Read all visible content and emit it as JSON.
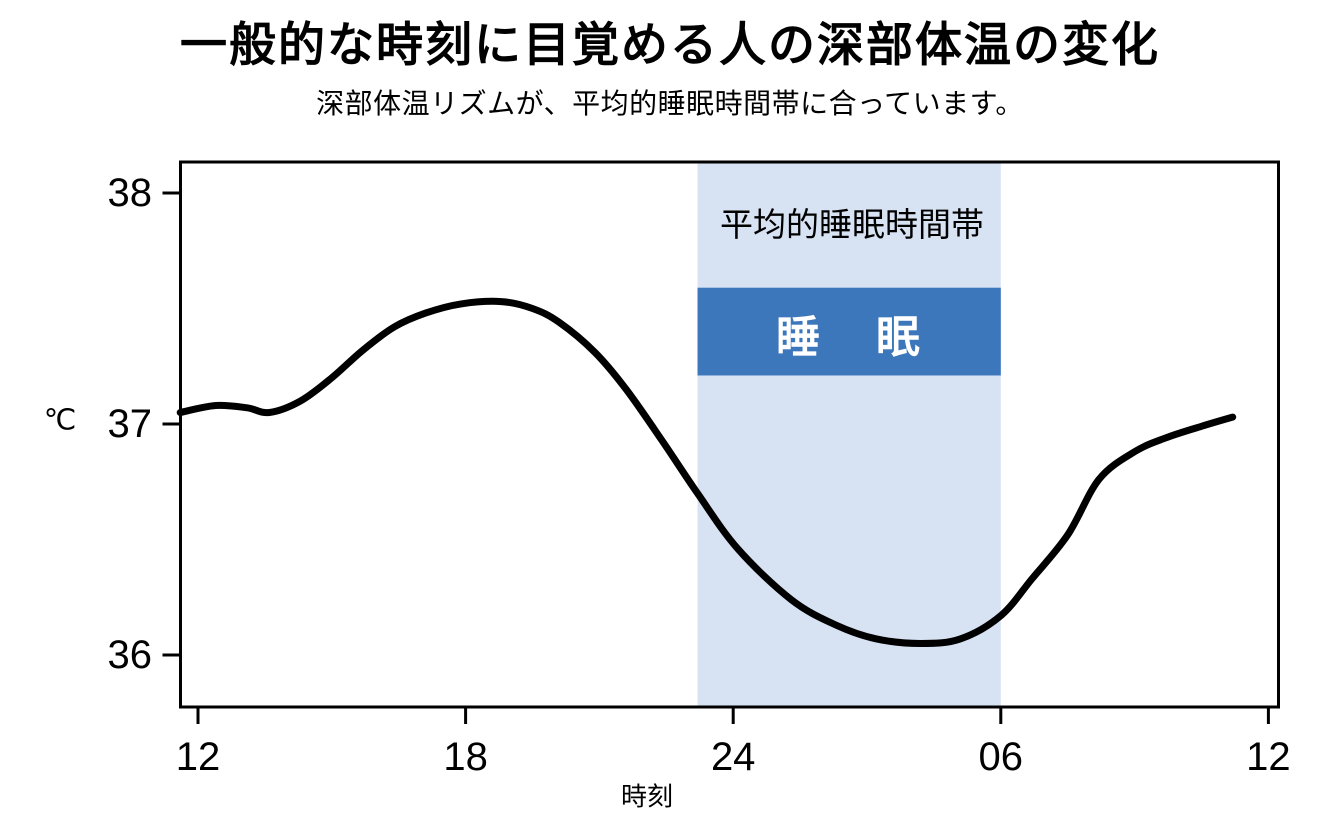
{
  "header": {
    "title": "一般的な時刻に目覚める人の深部体温の変化",
    "subtitle": "深部体温リズムが、平均的睡眠時間帯に合っています。"
  },
  "chart_data": {
    "type": "line",
    "title": "一般的な時刻に目覚める人の深部体温の変化",
    "subtitle": "深部体温リズムが、平均的睡眠時間帯に合っています。",
    "xlabel": "時刻",
    "ylabel": "℃",
    "grid": false,
    "x_axis": {
      "unit": "hour-of-day",
      "range_hours": [
        11.6,
        36.2
      ],
      "ticks": [
        {
          "hour": 12,
          "label": "12"
        },
        {
          "hour": 18,
          "label": "18"
        },
        {
          "hour": 24,
          "label": "24"
        },
        {
          "hour": 30,
          "label": "06"
        },
        {
          "hour": 36,
          "label": "12"
        }
      ]
    },
    "y_axis": {
      "unit": "℃",
      "range": [
        35.77,
        38.14
      ],
      "ticks": [
        {
          "value": 36,
          "label": "36"
        },
        {
          "value": 37,
          "label": "37"
        },
        {
          "value": 38,
          "label": "38"
        }
      ]
    },
    "series": [
      {
        "name": "深部体温",
        "color": "#000000",
        "line_width": 7,
        "points": [
          [
            11.6,
            37.05
          ],
          [
            12.4,
            37.08
          ],
          [
            13.1,
            37.07
          ],
          [
            13.6,
            37.05
          ],
          [
            14.3,
            37.1
          ],
          [
            15.0,
            37.2
          ],
          [
            15.7,
            37.32
          ],
          [
            16.4,
            37.42
          ],
          [
            17.1,
            37.48
          ],
          [
            17.9,
            37.52
          ],
          [
            18.8,
            37.53
          ],
          [
            19.5,
            37.5
          ],
          [
            20.1,
            37.44
          ],
          [
            20.9,
            37.31
          ],
          [
            21.6,
            37.15
          ],
          [
            22.4,
            36.93
          ],
          [
            23.2,
            36.7
          ],
          [
            24.1,
            36.46
          ],
          [
            25.3,
            36.24
          ],
          [
            26.3,
            36.13
          ],
          [
            27.2,
            36.07
          ],
          [
            28.2,
            36.05
          ],
          [
            29.1,
            36.07
          ],
          [
            30.0,
            36.17
          ],
          [
            30.7,
            36.33
          ],
          [
            31.5,
            36.52
          ],
          [
            32.2,
            36.76
          ],
          [
            33.0,
            36.88
          ],
          [
            33.7,
            36.94
          ],
          [
            34.5,
            36.99
          ],
          [
            35.2,
            37.03
          ]
        ]
      }
    ],
    "sleep_band": {
      "label": "平均的睡眠時間帯",
      "start_hour": 23.2,
      "end_hour": 30.0,
      "fill": "#d7e2f3",
      "label_color": "#000000"
    },
    "sleep_bar": {
      "label": "睡　眠",
      "start_hour": 23.2,
      "end_hour": 30.0,
      "temp_low": 37.21,
      "temp_high": 37.59,
      "fill": "#3d77bb",
      "text_color": "#ffffff"
    }
  }
}
